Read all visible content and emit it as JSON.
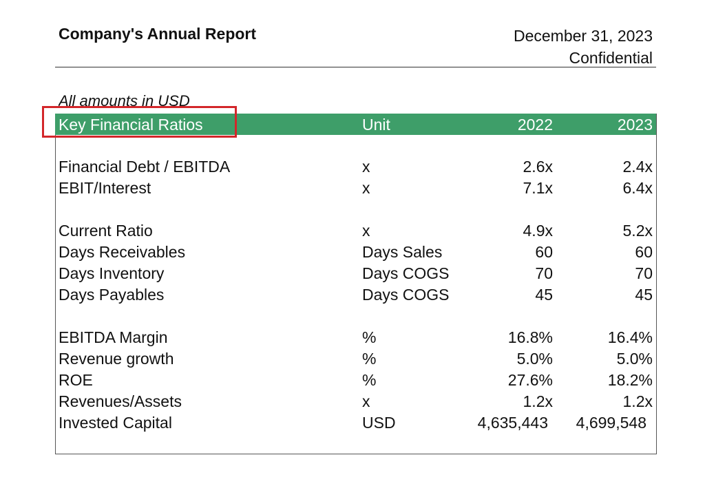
{
  "report": {
    "title": "Company's Annual Report",
    "date": "December 31, 2023",
    "classification": "Confidential",
    "currency_note": "All amounts in USD"
  },
  "table": {
    "headers": {
      "label": "Key Financial Ratios",
      "unit": "Unit",
      "year1": "2022",
      "year2": "2023"
    },
    "rows": [
      {
        "label": "Financial Debt / EBITDA",
        "unit": "x",
        "y2022": "2.6x",
        "y2023": "2.4x"
      },
      {
        "label": "EBIT/Interest",
        "unit": "x",
        "y2022": "7.1x",
        "y2023": "6.4x"
      },
      {
        "label": "Current Ratio",
        "unit": "x",
        "y2022": "4.9x",
        "y2023": "5.2x"
      },
      {
        "label": "Days Receivables",
        "unit": "Days Sales",
        "y2022": "60",
        "y2023": "60"
      },
      {
        "label": "Days Inventory",
        "unit": "Days COGS",
        "y2022": "70",
        "y2023": "70"
      },
      {
        "label": "Days Payables",
        "unit": "Days COGS",
        "y2022": "45",
        "y2023": "45"
      },
      {
        "label": "EBITDA Margin",
        "unit": "%",
        "y2022": "16.8%",
        "y2023": "16.4%"
      },
      {
        "label": "Revenue growth",
        "unit": "%",
        "y2022": "5.0%",
        "y2023": "5.0%"
      },
      {
        "label": "ROE",
        "unit": "%",
        "y2022": "27.6%",
        "y2023": "18.2%"
      },
      {
        "label": "Revenues/Assets",
        "unit": "x",
        "y2022": "1.2x",
        "y2023": "1.2x"
      },
      {
        "label": "Invested Capital",
        "unit": "USD",
        "y2022": "4,635,443",
        "y2023": "4,699,548"
      }
    ]
  },
  "colors": {
    "header_green": "#3e9e69",
    "highlight_red": "#d3262a"
  }
}
